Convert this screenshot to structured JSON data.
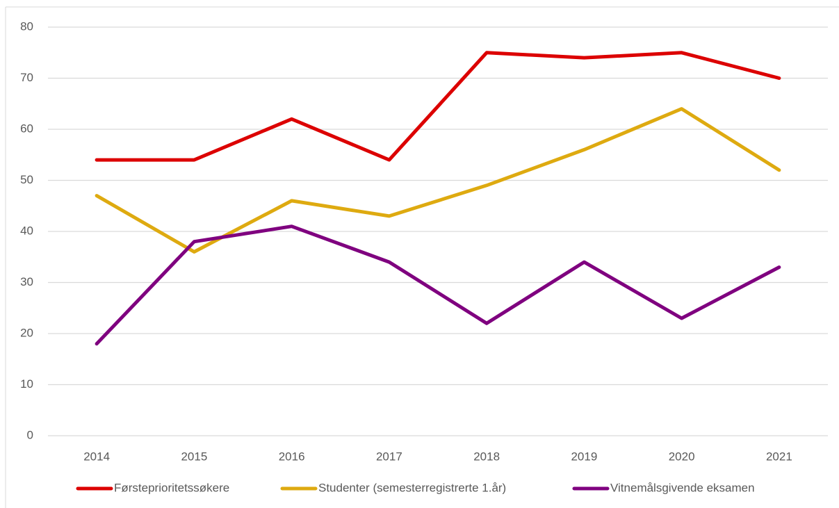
{
  "chart_data": {
    "type": "line",
    "categories": [
      "2014",
      "2015",
      "2016",
      "2017",
      "2018",
      "2019",
      "2020",
      "2021"
    ],
    "series": [
      {
        "name": "Førsteprioritetssøkere",
        "color": "#dc0000",
        "values": [
          54,
          54,
          62,
          54,
          75,
          74,
          75,
          70
        ]
      },
      {
        "name": "Studenter (semesterregistrerte 1.år)",
        "color": "#deaa10",
        "values": [
          47,
          36,
          46,
          43,
          49,
          56,
          64,
          52
        ]
      },
      {
        "name": "Vitnemålsgivende eksamen",
        "color": "#7f007f",
        "values": [
          18,
          38,
          41,
          34,
          22,
          34,
          23,
          33
        ]
      }
    ],
    "ylim": [
      0,
      80
    ],
    "yticks": [
      0,
      10,
      20,
      30,
      40,
      50,
      60,
      70,
      80
    ],
    "grid": true,
    "legend": "bottom"
  }
}
